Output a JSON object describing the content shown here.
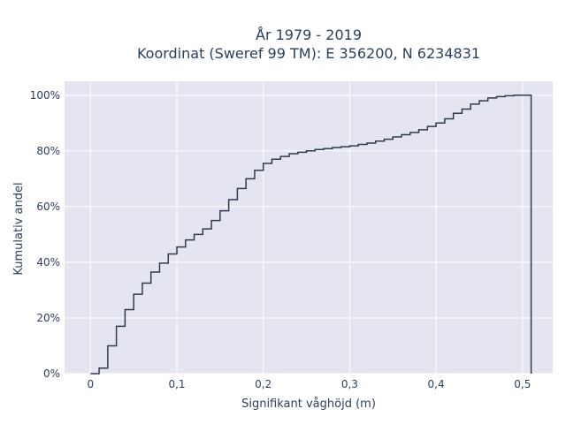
{
  "chart_data": {
    "type": "line",
    "line_shape": "step",
    "title_line1": "År 1979 - 2019",
    "title_line2": "Koordinat (Sweref 99 TM): E 356200, N 6234831",
    "xlabel": "Signifikant våghöjd (m)",
    "ylabel": "Kumulativ andel",
    "xlim": [
      -0.03,
      0.535
    ],
    "ylim": [
      0,
      1.05
    ],
    "x_ticks": [
      0,
      0.1,
      0.2,
      0.3,
      0.4,
      0.5
    ],
    "x_tick_labels": [
      "0",
      "0,1",
      "0,2",
      "0,3",
      "0,4",
      "0,5"
    ],
    "y_ticks": [
      0,
      0.2,
      0.4,
      0.6,
      0.8,
      1.0
    ],
    "y_tick_labels": [
      "0%",
      "20%",
      "40%",
      "60%",
      "80%",
      "100%"
    ],
    "grid": true,
    "colors": {
      "plot_bg": "#e5e5f2",
      "grid": "#ffffff",
      "line": "#2f3b4c",
      "text": "#2a3f5f"
    },
    "series": [
      {
        "x": [
          0,
          0.01,
          0.02,
          0.03,
          0.04,
          0.05,
          0.06,
          0.07,
          0.08,
          0.09,
          0.1,
          0.11,
          0.12,
          0.13,
          0.14,
          0.15,
          0.16,
          0.17,
          0.18,
          0.19,
          0.2,
          0.21,
          0.22,
          0.23,
          0.24,
          0.25,
          0.26,
          0.27,
          0.28,
          0.29,
          0.3,
          0.31,
          0.32,
          0.33,
          0.34,
          0.35,
          0.36,
          0.37,
          0.38,
          0.39,
          0.4,
          0.41,
          0.42,
          0.43,
          0.44,
          0.45,
          0.46,
          0.47,
          0.48,
          0.49,
          0.5,
          0.51
        ],
        "y": [
          0.0,
          0.02,
          0.1,
          0.17,
          0.23,
          0.285,
          0.325,
          0.365,
          0.397,
          0.43,
          0.455,
          0.48,
          0.5,
          0.52,
          0.55,
          0.585,
          0.625,
          0.665,
          0.7,
          0.73,
          0.755,
          0.77,
          0.78,
          0.79,
          0.795,
          0.8,
          0.805,
          0.808,
          0.812,
          0.815,
          0.818,
          0.823,
          0.828,
          0.835,
          0.842,
          0.85,
          0.858,
          0.866,
          0.876,
          0.888,
          0.9,
          0.915,
          0.935,
          0.95,
          0.968,
          0.98,
          0.99,
          0.995,
          0.998,
          1.0,
          1.0,
          0.0
        ]
      }
    ]
  }
}
